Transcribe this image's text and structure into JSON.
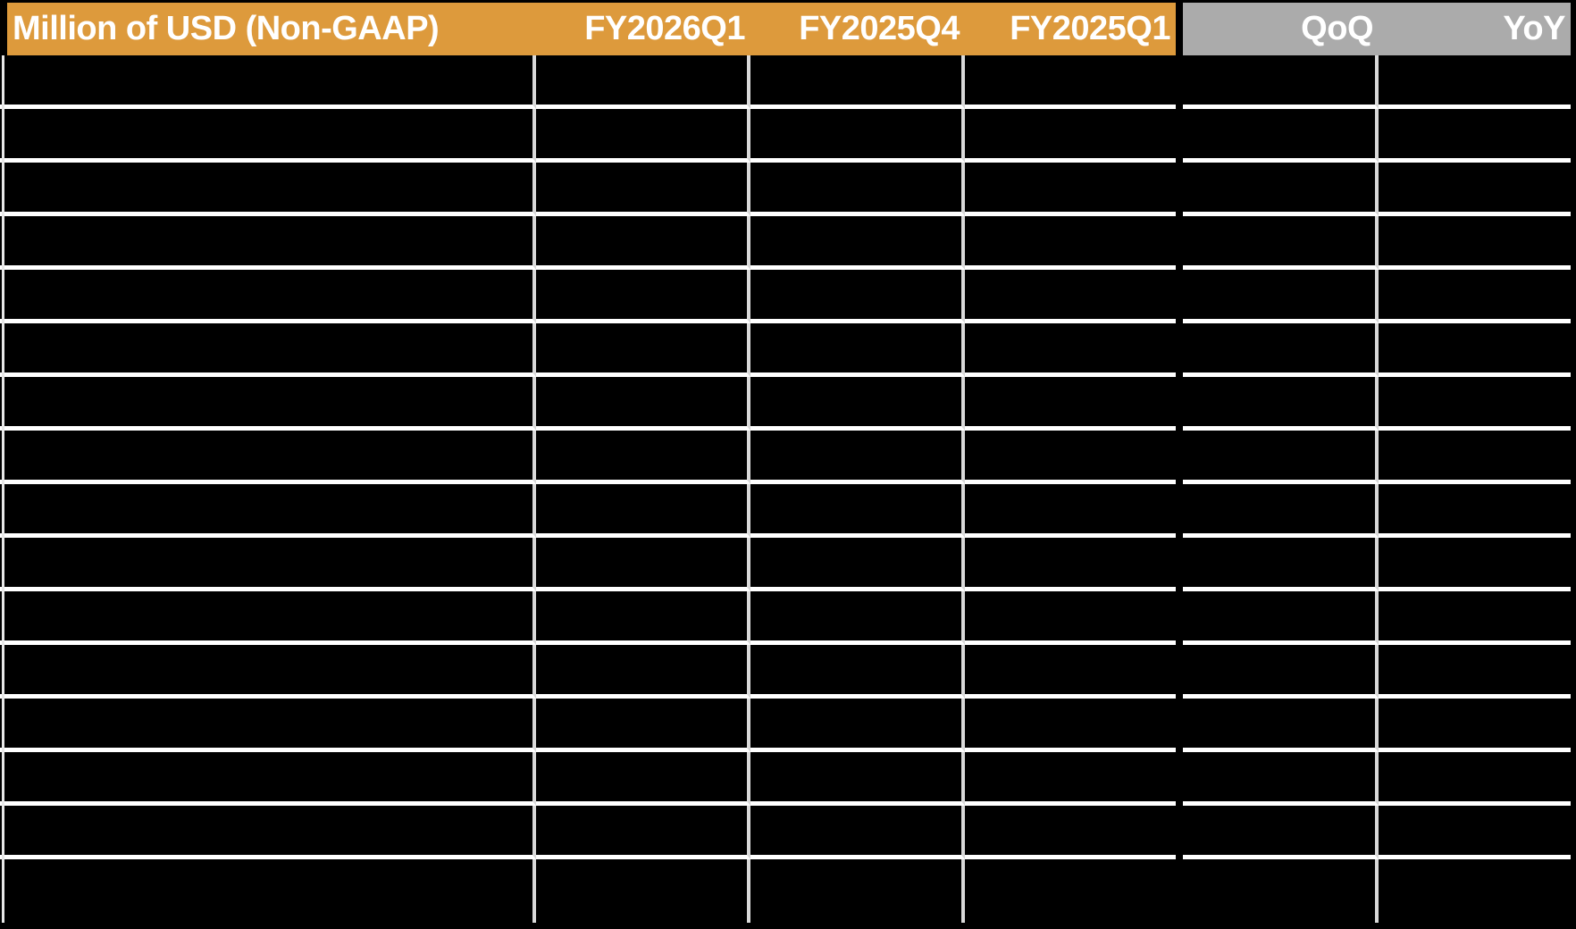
{
  "table": {
    "unit_header": "Million of USD (Non-GAAP)",
    "period_columns": [
      "FY2026Q1",
      "FY2025Q4",
      "FY2025Q1"
    ],
    "change_columns": [
      "QoQ",
      "YoY"
    ],
    "rows": [
      [
        "",
        "",
        "",
        "",
        "",
        ""
      ],
      [
        "",
        "",
        "",
        "",
        "",
        ""
      ],
      [
        "",
        "",
        "",
        "",
        "",
        ""
      ],
      [
        "",
        "",
        "",
        "",
        "",
        ""
      ],
      [
        "",
        "",
        "",
        "",
        "",
        ""
      ],
      [
        "",
        "",
        "",
        "",
        "",
        ""
      ],
      [
        "",
        "",
        "",
        "",
        "",
        ""
      ],
      [
        "",
        "",
        "",
        "",
        "",
        ""
      ],
      [
        "",
        "",
        "",
        "",
        "",
        ""
      ],
      [
        "",
        "",
        "",
        "",
        "",
        ""
      ],
      [
        "",
        "",
        "",
        "",
        "",
        ""
      ],
      [
        "",
        "",
        "",
        "",
        "",
        ""
      ],
      [
        "",
        "",
        "",
        "",
        "",
        ""
      ],
      [
        "",
        "",
        "",
        "",
        "",
        ""
      ],
      [
        "",
        "",
        "",
        "",
        "",
        ""
      ],
      [
        "",
        "",
        "",
        "",
        "",
        ""
      ]
    ],
    "colors": {
      "header_orange": "#DD9A3C",
      "header_gray": "#ABABAB",
      "header_text": "#FFFFFF",
      "body_background": "#000000",
      "grid_horizontal": "#FFFFFF",
      "grid_vertical": "#D9D9D9"
    }
  },
  "chart_data": {
    "type": "table",
    "title": "Million of USD (Non-GAAP)",
    "columns": [
      "Million of USD (Non-GAAP)",
      "FY2026Q1",
      "FY2025Q4",
      "FY2025Q1",
      "QoQ",
      "YoY"
    ],
    "rows": [
      [
        "",
        "",
        "",
        "",
        "",
        ""
      ],
      [
        "",
        "",
        "",
        "",
        "",
        ""
      ],
      [
        "",
        "",
        "",
        "",
        "",
        ""
      ],
      [
        "",
        "",
        "",
        "",
        "",
        ""
      ],
      [
        "",
        "",
        "",
        "",
        "",
        ""
      ],
      [
        "",
        "",
        "",
        "",
        "",
        ""
      ],
      [
        "",
        "",
        "",
        "",
        "",
        ""
      ],
      [
        "",
        "",
        "",
        "",
        "",
        ""
      ],
      [
        "",
        "",
        "",
        "",
        "",
        ""
      ],
      [
        "",
        "",
        "",
        "",
        "",
        ""
      ],
      [
        "",
        "",
        "",
        "",
        "",
        ""
      ],
      [
        "",
        "",
        "",
        "",
        "",
        ""
      ],
      [
        "",
        "",
        "",
        "",
        "",
        ""
      ],
      [
        "",
        "",
        "",
        "",
        "",
        ""
      ],
      [
        "",
        "",
        "",
        "",
        "",
        ""
      ],
      [
        "",
        "",
        "",
        "",
        "",
        ""
      ]
    ],
    "layout": {
      "header_fill_left": "#DD9A3C",
      "header_fill_right": "#ABABAB",
      "body_fill": "#000000",
      "grid": "on",
      "num_body_rows": 16,
      "body_cell_values_visible": false
    }
  }
}
